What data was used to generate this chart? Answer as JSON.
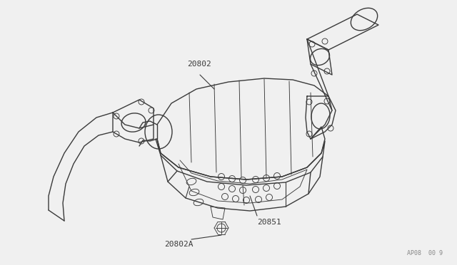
{
  "bg_color": "#f0f0f0",
  "line_color": "#3a3a3a",
  "label_color": "#3a3a3a",
  "watermark": "AP08  00 9",
  "label_fontsize": 8,
  "watermark_fontsize": 6,
  "lw_main": 1.0,
  "lw_thin": 0.65,
  "lw_med": 0.8
}
